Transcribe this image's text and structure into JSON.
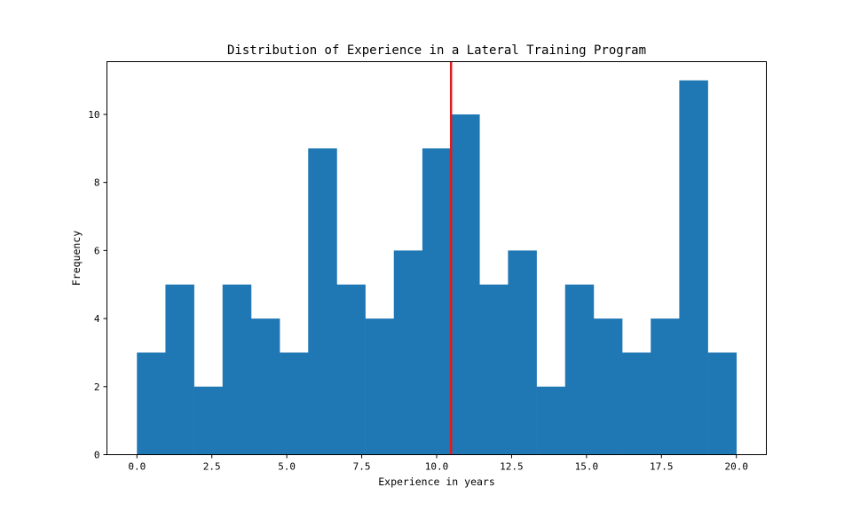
{
  "chart_data": {
    "type": "bar",
    "title": "Distribution of Experience in a Lateral Training Program",
    "xlabel": "Experience in years",
    "ylabel": "Frequency",
    "bin_edges": [
      0.0,
      0.952,
      1.905,
      2.857,
      3.81,
      4.762,
      5.714,
      6.667,
      7.619,
      8.571,
      9.524,
      10.476,
      11.429,
      12.381,
      13.333,
      14.286,
      15.238,
      16.19,
      17.143,
      18.095,
      19.048,
      20.0
    ],
    "values": [
      3,
      5,
      2,
      5,
      4,
      3,
      9,
      5,
      4,
      6,
      9,
      10,
      5,
      6,
      2,
      5,
      4,
      3,
      4,
      11,
      3
    ],
    "bar_color": "#1f77b4",
    "mean_line": {
      "x": 10.48,
      "color": "#e31a1c"
    },
    "xlim": [
      -1.0,
      21.0
    ],
    "ylim": [
      0,
      11.55
    ],
    "xticks": [
      0.0,
      2.5,
      5.0,
      7.5,
      10.0,
      12.5,
      15.0,
      17.5,
      20.0
    ],
    "xtick_labels": [
      "0.0",
      "2.5",
      "5.0",
      "7.5",
      "10.0",
      "12.5",
      "15.0",
      "17.5",
      "20.0"
    ],
    "yticks": [
      0,
      2,
      4,
      6,
      8,
      10
    ],
    "ytick_labels": [
      "0",
      "2",
      "4",
      "6",
      "8",
      "10"
    ],
    "grid": false,
    "legend": "none"
  }
}
